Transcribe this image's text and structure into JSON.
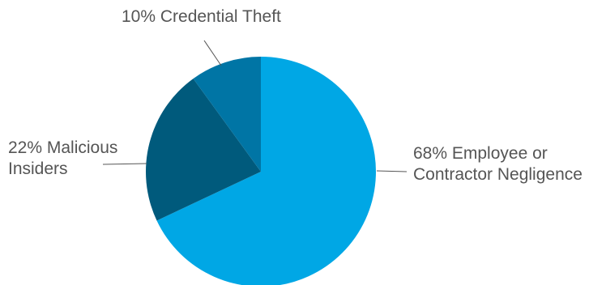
{
  "chart_data": {
    "type": "pie",
    "slices": [
      {
        "value": 68,
        "label_lines": [
          "68% Employee or",
          "Contractor Negligence"
        ],
        "color": "#00a7e5"
      },
      {
        "value": 22,
        "label_lines": [
          "22% Malicious",
          "Insiders"
        ],
        "color": "#005a7c"
      },
      {
        "value": 10,
        "label_lines": [
          "10% Credential Theft"
        ],
        "color": "#0075a5"
      }
    ],
    "start_angle_deg": 0,
    "direction": "clockwise"
  }
}
